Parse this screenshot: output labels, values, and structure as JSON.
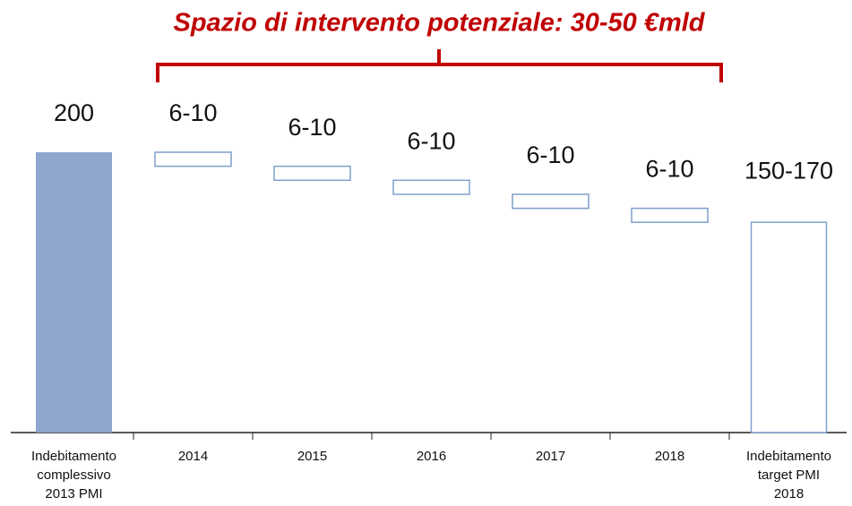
{
  "chart_data": {
    "type": "waterfall-range",
    "title": "Spazio di intervento potenziale: 30-50 €mld",
    "categories": [
      [
        "Indebitamento",
        "complessivo",
        "2013 PMI"
      ],
      "2014",
      "2015",
      "2016",
      "2017",
      "2018",
      [
        "Indebitamento",
        "target PMI",
        "2018"
      ]
    ],
    "values": [
      [
        200
      ],
      [
        6,
        10
      ],
      [
        6,
        10
      ],
      [
        6,
        10
      ],
      [
        6,
        10
      ],
      [
        6,
        10
      ],
      [
        150,
        170
      ]
    ],
    "value_labels": [
      "200",
      "6-10",
      "6-10",
      "6-10",
      "6-10",
      "6-10",
      "150-170"
    ],
    "color": "#8ea6cc",
    "outline_color": "#7f9fcc",
    "title_color": "#c00000"
  }
}
